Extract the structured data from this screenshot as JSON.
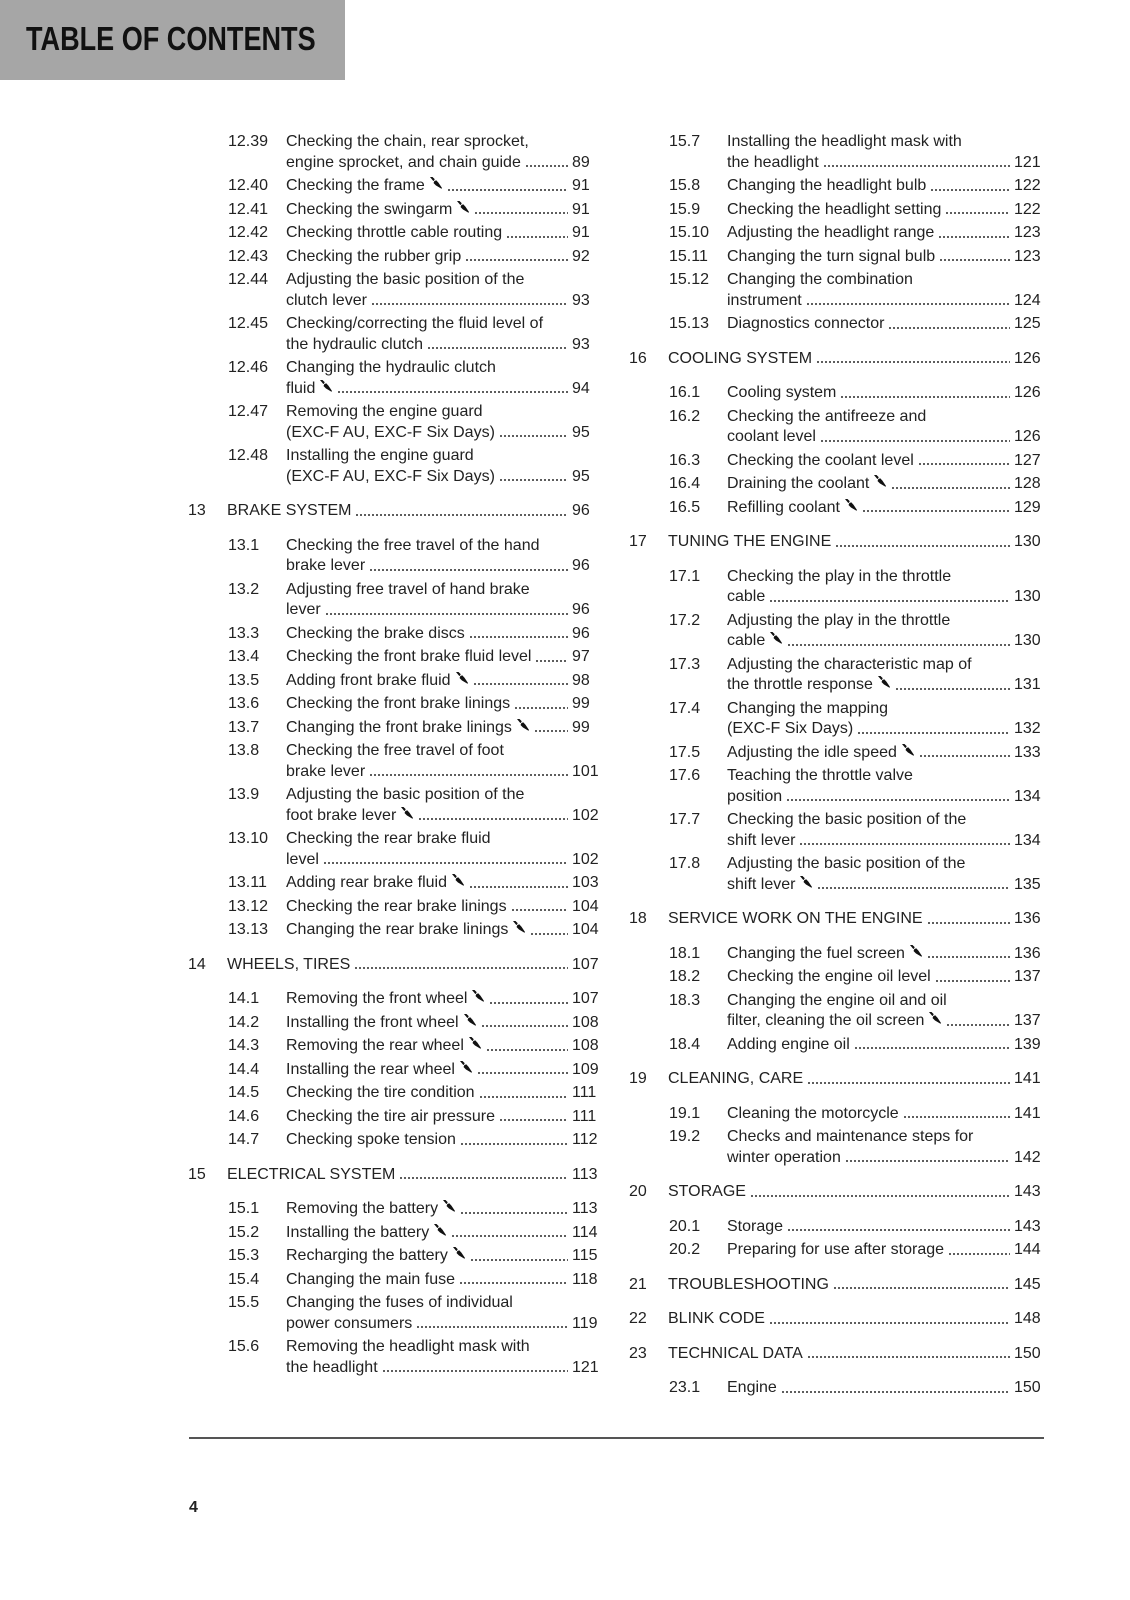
{
  "header": {
    "title": "TABLE OF CONTENTS"
  },
  "footer": {
    "page_number": "4"
  },
  "columns": [
    [
      {
        "num": "12.39",
        "lines": [
          "Checking the chain, rear sprocket,",
          "engine sprocket, and chain guide"
        ],
        "page": "89",
        "wrench": false,
        "type": "sub"
      },
      {
        "num": "12.40",
        "lines": [
          "Checking the frame"
        ],
        "page": "91",
        "wrench": true,
        "type": "sub"
      },
      {
        "num": "12.41",
        "lines": [
          "Checking the swingarm"
        ],
        "page": "91",
        "wrench": true,
        "type": "sub"
      },
      {
        "num": "12.42",
        "lines": [
          "Checking throttle cable routing"
        ],
        "page": "91",
        "wrench": false,
        "type": "sub"
      },
      {
        "num": "12.43",
        "lines": [
          "Checking the rubber grip"
        ],
        "page": "92",
        "wrench": false,
        "type": "sub"
      },
      {
        "num": "12.44",
        "lines": [
          "Adjusting the basic position of the",
          "clutch lever"
        ],
        "page": "93",
        "wrench": false,
        "type": "sub"
      },
      {
        "num": "12.45",
        "lines": [
          "Checking/correcting the fluid level of",
          "the hydraulic clutch"
        ],
        "page": "93",
        "wrench": false,
        "type": "sub"
      },
      {
        "num": "12.46",
        "lines": [
          "Changing the hydraulic clutch",
          "fluid"
        ],
        "page": "94",
        "wrench": true,
        "type": "sub"
      },
      {
        "num": "12.47",
        "lines": [
          "Removing the engine guard",
          "(EXC-F AU, EXC-F Six Days)"
        ],
        "page": "95",
        "wrench": false,
        "type": "sub"
      },
      {
        "num": "12.48",
        "lines": [
          "Installing the engine guard",
          "(EXC-F AU, EXC-F Six Days)"
        ],
        "page": "95",
        "wrench": false,
        "type": "sub"
      },
      {
        "num": "13",
        "lines": [
          "BRAKE SYSTEM"
        ],
        "page": "96",
        "wrench": false,
        "type": "chapter"
      },
      {
        "num": "13.1",
        "lines": [
          "Checking the free travel of the hand",
          "brake lever"
        ],
        "page": "96",
        "wrench": false,
        "type": "sub"
      },
      {
        "num": "13.2",
        "lines": [
          "Adjusting free travel of hand brake",
          "lever"
        ],
        "page": "96",
        "wrench": false,
        "type": "sub"
      },
      {
        "num": "13.3",
        "lines": [
          "Checking the brake discs"
        ],
        "page": "96",
        "wrench": false,
        "type": "sub"
      },
      {
        "num": "13.4",
        "lines": [
          "Checking the front brake fluid level"
        ],
        "page": "97",
        "wrench": false,
        "type": "sub"
      },
      {
        "num": "13.5",
        "lines": [
          "Adding front brake fluid"
        ],
        "page": "98",
        "wrench": true,
        "type": "sub"
      },
      {
        "num": "13.6",
        "lines": [
          "Checking the front brake linings"
        ],
        "page": "99",
        "wrench": false,
        "type": "sub"
      },
      {
        "num": "13.7",
        "lines": [
          "Changing the front brake linings"
        ],
        "page": "99",
        "wrench": true,
        "type": "sub"
      },
      {
        "num": "13.8",
        "lines": [
          "Checking the free travel of foot",
          "brake lever"
        ],
        "page": "101",
        "wrench": false,
        "type": "sub"
      },
      {
        "num": "13.9",
        "lines": [
          "Adjusting the basic position of the",
          "foot brake lever"
        ],
        "page": "102",
        "wrench": true,
        "type": "sub"
      },
      {
        "num": "13.10",
        "lines": [
          "Checking the rear brake fluid",
          "level"
        ],
        "page": "102",
        "wrench": false,
        "type": "sub"
      },
      {
        "num": "13.11",
        "lines": [
          "Adding rear brake fluid"
        ],
        "page": "103",
        "wrench": true,
        "type": "sub"
      },
      {
        "num": "13.12",
        "lines": [
          "Checking the rear brake linings"
        ],
        "page": "104",
        "wrench": false,
        "type": "sub"
      },
      {
        "num": "13.13",
        "lines": [
          "Changing the rear brake linings"
        ],
        "page": "104",
        "wrench": true,
        "type": "sub"
      },
      {
        "num": "14",
        "lines": [
          "WHEELS, TIRES"
        ],
        "page": "107",
        "wrench": false,
        "type": "chapter"
      },
      {
        "num": "14.1",
        "lines": [
          "Removing the front wheel"
        ],
        "page": "107",
        "wrench": true,
        "type": "sub"
      },
      {
        "num": "14.2",
        "lines": [
          "Installing the front wheel"
        ],
        "page": "108",
        "wrench": true,
        "type": "sub"
      },
      {
        "num": "14.3",
        "lines": [
          "Removing the rear wheel"
        ],
        "page": "108",
        "wrench": true,
        "type": "sub"
      },
      {
        "num": "14.4",
        "lines": [
          "Installing the rear wheel"
        ],
        "page": "109",
        "wrench": true,
        "type": "sub"
      },
      {
        "num": "14.5",
        "lines": [
          "Checking the tire condition"
        ],
        "page": "111",
        "wrench": false,
        "type": "sub"
      },
      {
        "num": "14.6",
        "lines": [
          "Checking the tire air pressure"
        ],
        "page": "111",
        "wrench": false,
        "type": "sub"
      },
      {
        "num": "14.7",
        "lines": [
          "Checking spoke tension"
        ],
        "page": "112",
        "wrench": false,
        "type": "sub"
      },
      {
        "num": "15",
        "lines": [
          "ELECTRICAL SYSTEM"
        ],
        "page": "113",
        "wrench": false,
        "type": "chapter"
      },
      {
        "num": "15.1",
        "lines": [
          "Removing the battery"
        ],
        "page": "113",
        "wrench": true,
        "type": "sub"
      },
      {
        "num": "15.2",
        "lines": [
          "Installing the battery"
        ],
        "page": "114",
        "wrench": true,
        "type": "sub"
      },
      {
        "num": "15.3",
        "lines": [
          "Recharging the battery"
        ],
        "page": "115",
        "wrench": true,
        "type": "sub"
      },
      {
        "num": "15.4",
        "lines": [
          "Changing the main fuse"
        ],
        "page": "118",
        "wrench": false,
        "type": "sub"
      },
      {
        "num": "15.5",
        "lines": [
          "Changing the fuses of individual",
          "power consumers"
        ],
        "page": "119",
        "wrench": false,
        "type": "sub"
      },
      {
        "num": "15.6",
        "lines": [
          "Removing the headlight mask with",
          "the headlight"
        ],
        "page": "121",
        "wrench": false,
        "type": "sub"
      }
    ],
    [
      {
        "num": "15.7",
        "lines": [
          "Installing the headlight mask with",
          "the headlight"
        ],
        "page": "121",
        "wrench": false,
        "type": "sub"
      },
      {
        "num": "15.8",
        "lines": [
          "Changing the headlight bulb"
        ],
        "page": "122",
        "wrench": false,
        "type": "sub"
      },
      {
        "num": "15.9",
        "lines": [
          "Checking the headlight setting"
        ],
        "page": "122",
        "wrench": false,
        "type": "sub"
      },
      {
        "num": "15.10",
        "lines": [
          "Adjusting the headlight range"
        ],
        "page": "123",
        "wrench": false,
        "type": "sub"
      },
      {
        "num": "15.11",
        "lines": [
          "Changing the turn signal bulb"
        ],
        "page": "123",
        "wrench": false,
        "type": "sub"
      },
      {
        "num": "15.12",
        "lines": [
          "Changing the combination",
          "instrument"
        ],
        "page": "124",
        "wrench": false,
        "type": "sub"
      },
      {
        "num": "15.13",
        "lines": [
          "Diagnostics connector"
        ],
        "page": "125",
        "wrench": false,
        "type": "sub"
      },
      {
        "num": "16",
        "lines": [
          "COOLING SYSTEM"
        ],
        "page": "126",
        "wrench": false,
        "type": "chapter"
      },
      {
        "num": "16.1",
        "lines": [
          "Cooling system"
        ],
        "page": "126",
        "wrench": false,
        "type": "sub"
      },
      {
        "num": "16.2",
        "lines": [
          "Checking the antifreeze and",
          "coolant level"
        ],
        "page": "126",
        "wrench": false,
        "type": "sub"
      },
      {
        "num": "16.3",
        "lines": [
          "Checking the coolant level"
        ],
        "page": "127",
        "wrench": false,
        "type": "sub"
      },
      {
        "num": "16.4",
        "lines": [
          "Draining the coolant"
        ],
        "page": "128",
        "wrench": true,
        "type": "sub"
      },
      {
        "num": "16.5",
        "lines": [
          "Refilling coolant"
        ],
        "page": "129",
        "wrench": true,
        "type": "sub"
      },
      {
        "num": "17",
        "lines": [
          "TUNING THE ENGINE"
        ],
        "page": "130",
        "wrench": false,
        "type": "chapter"
      },
      {
        "num": "17.1",
        "lines": [
          "Checking the play in the throttle",
          "cable"
        ],
        "page": "130",
        "wrench": false,
        "type": "sub"
      },
      {
        "num": "17.2",
        "lines": [
          "Adjusting the play in the throttle",
          "cable"
        ],
        "page": "130",
        "wrench": true,
        "type": "sub"
      },
      {
        "num": "17.3",
        "lines": [
          "Adjusting the characteristic map of",
          "the throttle response"
        ],
        "page": "131",
        "wrench": true,
        "type": "sub"
      },
      {
        "num": "17.4",
        "lines": [
          "Changing the mapping",
          "(EXC-F Six Days)"
        ],
        "page": "132",
        "wrench": false,
        "type": "sub"
      },
      {
        "num": "17.5",
        "lines": [
          "Adjusting the idle speed"
        ],
        "page": "133",
        "wrench": true,
        "type": "sub"
      },
      {
        "num": "17.6",
        "lines": [
          "Teaching the throttle valve",
          "position"
        ],
        "page": "134",
        "wrench": false,
        "type": "sub"
      },
      {
        "num": "17.7",
        "lines": [
          "Checking the basic position of the",
          "shift lever"
        ],
        "page": "134",
        "wrench": false,
        "type": "sub"
      },
      {
        "num": "17.8",
        "lines": [
          "Adjusting the basic position of the",
          "shift lever"
        ],
        "page": "135",
        "wrench": true,
        "type": "sub"
      },
      {
        "num": "18",
        "lines": [
          "SERVICE WORK ON THE ENGINE"
        ],
        "page": "136",
        "wrench": false,
        "type": "chapter"
      },
      {
        "num": "18.1",
        "lines": [
          "Changing the fuel screen"
        ],
        "page": "136",
        "wrench": true,
        "type": "sub"
      },
      {
        "num": "18.2",
        "lines": [
          "Checking the engine oil level"
        ],
        "page": "137",
        "wrench": false,
        "type": "sub"
      },
      {
        "num": "18.3",
        "lines": [
          "Changing the engine oil and oil",
          "filter, cleaning the oil screen"
        ],
        "page": "137",
        "wrench": true,
        "type": "sub"
      },
      {
        "num": "18.4",
        "lines": [
          "Adding engine oil"
        ],
        "page": "139",
        "wrench": false,
        "type": "sub"
      },
      {
        "num": "19",
        "lines": [
          "CLEANING, CARE"
        ],
        "page": "141",
        "wrench": false,
        "type": "chapter"
      },
      {
        "num": "19.1",
        "lines": [
          "Cleaning the motorcycle"
        ],
        "page": "141",
        "wrench": false,
        "type": "sub"
      },
      {
        "num": "19.2",
        "lines": [
          "Checks and maintenance steps for",
          "winter operation"
        ],
        "page": "142",
        "wrench": false,
        "type": "sub"
      },
      {
        "num": "20",
        "lines": [
          "STORAGE"
        ],
        "page": "143",
        "wrench": false,
        "type": "chapter"
      },
      {
        "num": "20.1",
        "lines": [
          "Storage"
        ],
        "page": "143",
        "wrench": false,
        "type": "sub"
      },
      {
        "num": "20.2",
        "lines": [
          "Preparing for use after storage"
        ],
        "page": "144",
        "wrench": false,
        "type": "sub"
      },
      {
        "num": "21",
        "lines": [
          "TROUBLESHOOTING"
        ],
        "page": "145",
        "wrench": false,
        "type": "chapter"
      },
      {
        "num": "22",
        "lines": [
          "BLINK CODE"
        ],
        "page": "148",
        "wrench": false,
        "type": "chapter"
      },
      {
        "num": "23",
        "lines": [
          "TECHNICAL DATA"
        ],
        "page": "150",
        "wrench": false,
        "type": "chapter"
      },
      {
        "num": "23.1",
        "lines": [
          "Engine"
        ],
        "page": "150",
        "wrench": false,
        "type": "sub"
      }
    ]
  ]
}
